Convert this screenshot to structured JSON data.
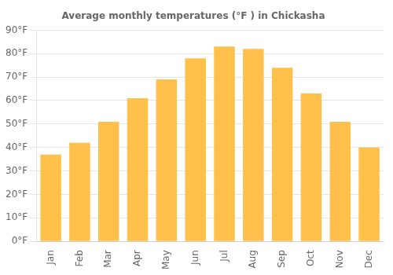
{
  "chart_data": {
    "type": "bar",
    "title": "Average monthly temperatures (°F ) in Chickasha",
    "categories": [
      "Jan",
      "Feb",
      "Mar",
      "Apr",
      "May",
      "Jun",
      "Jul",
      "Aug",
      "Sep",
      "Oct",
      "Nov",
      "Dec"
    ],
    "values": [
      37,
      42,
      51,
      61,
      69,
      78,
      83,
      82,
      74,
      63,
      51,
      40
    ],
    "color": "#FFC04C",
    "ylim": [
      0,
      90
    ],
    "yticks": [
      {
        "value": 0,
        "label": "0°F"
      },
      {
        "value": 10,
        "label": "10°F"
      },
      {
        "value": 20,
        "label": "20°F"
      },
      {
        "value": 30,
        "label": "30°F"
      },
      {
        "value": 40,
        "label": "40°F"
      },
      {
        "value": 50,
        "label": "50°F"
      },
      {
        "value": 60,
        "label": "60°F"
      },
      {
        "value": 70,
        "label": "70°F"
      },
      {
        "value": 80,
        "label": "80°F"
      },
      {
        "value": 90,
        "label": "90°F"
      }
    ],
    "grid": true
  }
}
